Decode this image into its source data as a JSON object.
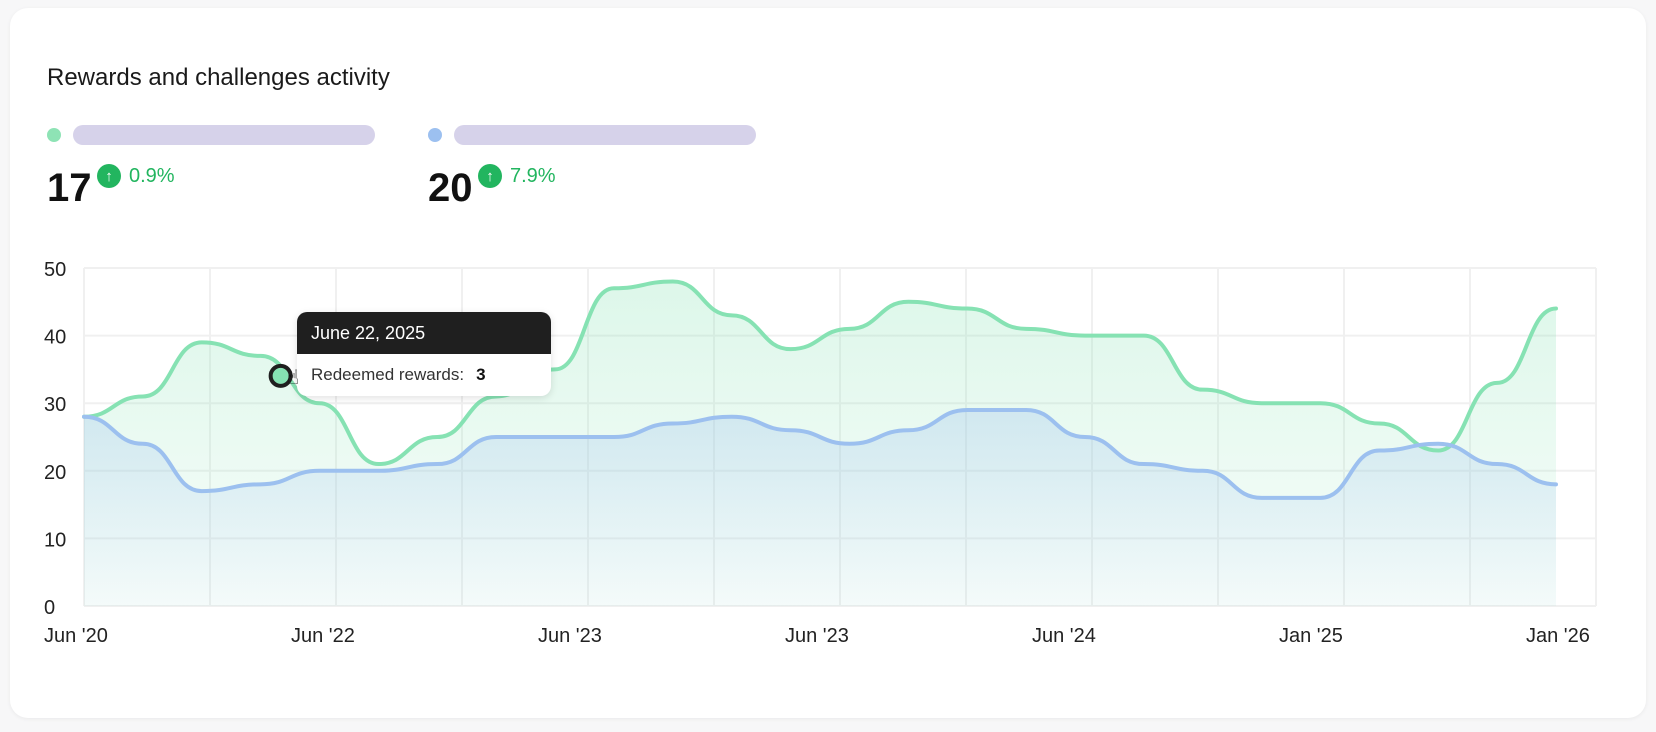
{
  "card": {
    "title": "Rewards and challenges activity"
  },
  "metrics": [
    {
      "color": "#8ee3b5",
      "value": "17",
      "delta": "0.9%"
    },
    {
      "color": "#9cc0f0",
      "value": "20",
      "delta": "7.9%"
    }
  ],
  "tooltip": {
    "date": "June 22, 2025",
    "label": "Redeemed rewards:",
    "value": "3"
  },
  "colors": {
    "green_line": "#86e2b3",
    "blue_line": "#9cc0ef",
    "positive": "#22b55f"
  },
  "chart_data": {
    "type": "area",
    "x_labels": [
      "Jun '20",
      "Jun  '22",
      "Jun '23",
      "Jun  '23",
      "Jun  '24",
      "Jan  '25",
      "Jan '26"
    ],
    "ylim": [
      0,
      50
    ],
    "yticks": [
      0,
      10,
      20,
      30,
      40,
      50
    ],
    "grid": true,
    "series": [
      {
        "values": [
          28,
          31,
          39,
          37,
          30,
          21,
          25,
          31,
          35,
          47,
          48,
          43,
          38,
          41,
          45,
          44,
          41,
          40,
          40,
          32,
          30,
          30,
          27,
          23,
          33,
          44
        ],
        "color": "#86e2b3"
      },
      {
        "values": [
          28,
          24,
          17,
          18,
          20,
          20,
          21,
          25,
          25,
          25,
          27,
          28,
          26,
          24,
          26,
          29,
          29,
          25,
          21,
          20,
          16,
          16,
          23,
          24,
          21,
          18
        ],
        "color": "#9cc0ef"
      }
    ]
  }
}
